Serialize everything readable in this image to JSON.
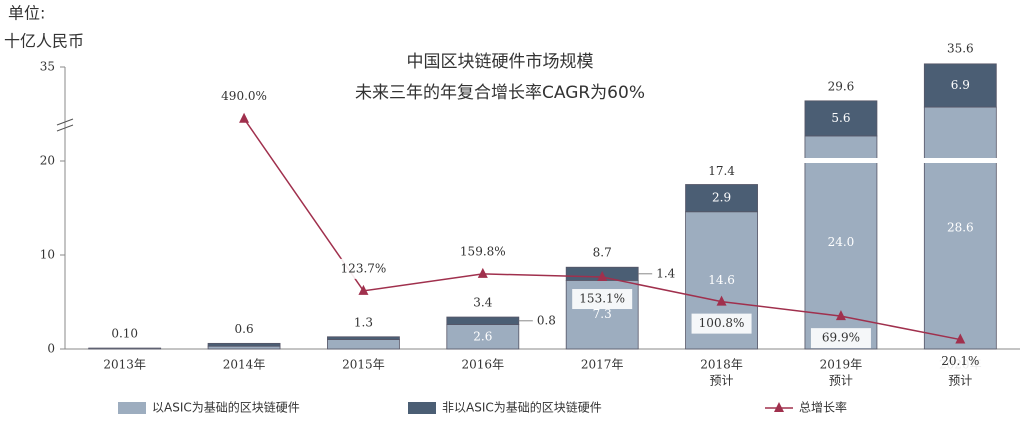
{
  "chart_data": {
    "type": "bar",
    "title": "中国区块链硬件市场规模",
    "subtitle": "未来三年的年复合增长率CAGR为60%",
    "y_unit": [
      "单位:",
      "十亿人民币"
    ],
    "categories": [
      [
        "2013年"
      ],
      [
        "2014年"
      ],
      [
        "2015年"
      ],
      [
        "2016年"
      ],
      [
        "2017年"
      ],
      [
        "2018年",
        "预计"
      ],
      [
        "2019年",
        "预计"
      ],
      [
        "2020年",
        "预计"
      ]
    ],
    "stacked": true,
    "series": [
      {
        "name": "以ASIC为基础的区块链硬件",
        "color": "#9dadbf",
        "values": [
          0.1,
          0.3,
          1.0,
          2.6,
          7.3,
          14.6,
          24.0,
          28.6
        ],
        "value_labels": [
          null,
          null,
          null,
          "2.6",
          "7.3",
          "14.6",
          "24.0",
          "28.6"
        ]
      },
      {
        "name": "非以ASIC为基础的区块链硬件",
        "color": "#4b5e74",
        "values": [
          0,
          0.3,
          0.3,
          0.8,
          1.4,
          2.9,
          5.6,
          6.9
        ],
        "value_labels": [
          null,
          null,
          null,
          "0.8",
          "1.4",
          "2.9",
          "5.6",
          "6.9"
        ]
      },
      {
        "name": "总增长率",
        "type": "line",
        "axis": "y2",
        "color": "#a0304d",
        "values": [
          null,
          490.0,
          123.7,
          159.8,
          153.1,
          100.8,
          69.9,
          20.1
        ],
        "value_labels": [
          null,
          "490.0%",
          "123.7%",
          "159.8%",
          "153.1%",
          "100.8%",
          "69.9%",
          "20.1%"
        ]
      }
    ],
    "totals": [
      0.1,
      0.6,
      1.3,
      3.4,
      8.7,
      17.4,
      29.6,
      35.6
    ],
    "total_labels": [
      "0.10",
      "0.6",
      "1.3",
      "3.4",
      "8.7",
      "17.4",
      "29.6",
      "35.6"
    ],
    "ylim": [
      0,
      35
    ],
    "yticks": [
      0,
      10,
      20,
      35
    ],
    "y_break": 20,
    "y2lim": [
      0,
      600
    ]
  }
}
